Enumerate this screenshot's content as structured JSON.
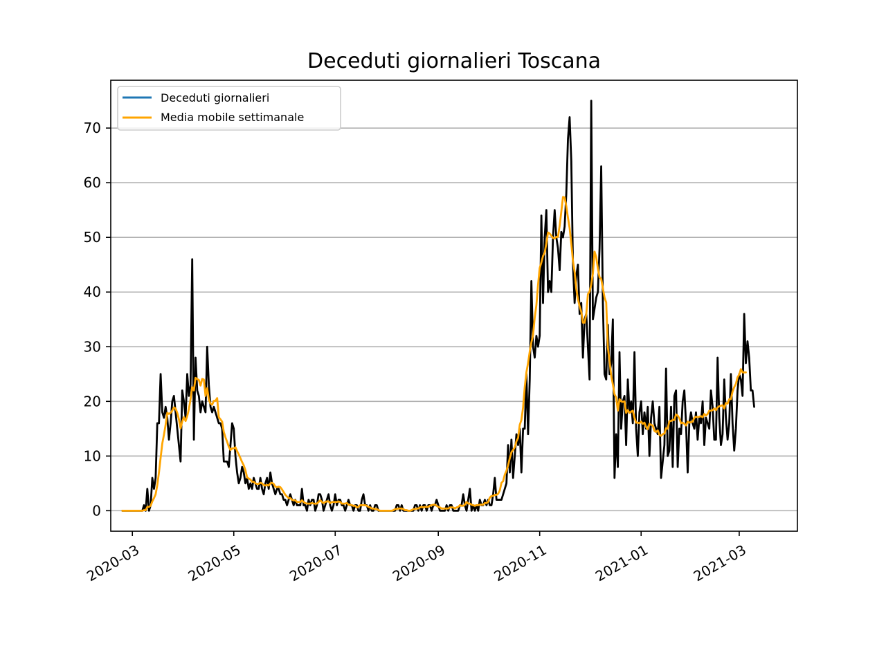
{
  "chart_data": {
    "type": "line",
    "title": "Deceduti giornalieri Toscana",
    "xlabel": "",
    "ylabel": "",
    "x_start": "2020-02-24",
    "x_end": "2021-03-27",
    "xlim": [
      "2020-02-17",
      "2021-04-05"
    ],
    "ylim": [
      -3.75,
      78.75
    ],
    "grid": "y",
    "legend_placement": "upper-left",
    "x_ticks": [
      "2020-03",
      "2020-05",
      "2020-07",
      "2020-09",
      "2020-11",
      "2021-01",
      "2021-03"
    ],
    "x_tick_dates": [
      "2020-03-01",
      "2020-05-01",
      "2020-07-01",
      "2020-09-01",
      "2020-11-01",
      "2021-01-01",
      "2021-03-01"
    ],
    "y_ticks": [
      0,
      10,
      20,
      30,
      40,
      50,
      60,
      70
    ],
    "series": [
      {
        "name": "Deceduti giornalieri",
        "legend_color": "#1f77b4",
        "line_color": "#000000",
        "values": [
          0,
          0,
          0,
          0,
          0,
          0,
          0,
          0,
          0,
          0,
          0,
          0,
          0,
          1,
          0,
          4,
          0,
          1,
          6,
          4,
          6,
          16,
          16,
          25,
          18,
          17,
          19,
          17,
          13,
          16,
          20,
          21,
          18,
          15,
          12,
          9,
          22,
          20,
          17,
          25,
          21,
          23,
          46,
          13,
          28,
          22,
          21,
          18,
          20,
          19,
          18,
          30,
          23,
          19,
          18,
          19,
          18,
          17,
          16,
          16,
          15,
          9,
          9,
          9,
          8,
          12,
          16,
          15,
          10,
          7,
          5,
          6,
          8,
          7,
          5,
          6,
          4,
          5,
          4,
          6,
          5,
          4,
          4,
          6,
          4,
          3,
          5,
          6,
          4,
          7,
          5,
          4,
          3,
          4,
          4,
          3,
          3,
          2,
          2,
          1,
          2,
          3,
          2,
          1,
          2,
          1,
          1,
          1,
          4,
          1,
          1,
          0,
          2,
          1,
          2,
          2,
          0,
          1,
          3,
          3,
          2,
          0,
          1,
          2,
          3,
          1,
          0,
          1,
          3,
          1,
          2,
          2,
          1,
          1,
          0,
          1,
          2,
          1,
          1,
          0,
          1,
          1,
          0,
          0,
          2,
          3,
          1,
          1,
          0,
          1,
          0,
          0,
          1,
          1,
          0,
          0,
          0,
          0,
          0,
          0,
          0,
          0,
          0,
          0,
          0,
          1,
          1,
          0,
          1,
          0,
          0,
          0,
          0,
          0,
          0,
          0,
          1,
          1,
          0,
          1,
          0,
          1,
          1,
          0,
          1,
          1,
          0,
          1,
          1,
          2,
          1,
          0,
          0,
          0,
          0,
          1,
          0,
          1,
          1,
          0,
          0,
          0,
          0,
          1,
          1,
          3,
          1,
          0,
          2,
          4,
          0,
          1,
          0,
          1,
          0,
          2,
          1,
          1,
          2,
          1,
          2,
          1,
          1,
          3,
          6,
          2,
          2,
          2,
          2,
          3,
          4,
          5,
          12,
          7,
          13,
          6,
          10,
          14,
          12,
          15,
          7,
          15,
          15,
          25,
          14,
          24,
          42,
          30,
          28,
          32,
          30,
          32,
          54,
          38,
          50,
          55,
          40,
          42,
          40,
          50,
          55,
          50,
          48,
          44,
          51,
          50,
          52,
          58,
          68,
          72,
          64,
          45,
          38,
          43,
          45,
          36,
          38,
          28,
          35,
          36,
          30,
          24,
          75,
          35,
          37,
          39,
          40,
          48,
          63,
          38,
          25,
          24,
          34,
          25,
          27,
          35,
          6,
          14,
          8,
          29,
          15,
          20,
          21,
          12,
          24,
          18,
          20,
          16,
          29,
          15,
          10,
          18,
          20,
          14,
          18,
          15,
          19,
          10,
          17,
          20,
          16,
          15,
          14,
          19,
          6,
          9,
          12,
          26,
          10,
          11,
          19,
          8,
          21,
          22,
          8,
          15,
          14,
          20,
          22,
          16,
          7,
          16,
          18,
          16,
          15,
          18,
          13,
          17,
          16,
          20,
          12,
          17,
          16,
          15,
          22,
          19,
          13,
          13,
          28,
          17,
          12,
          14,
          24,
          17,
          13,
          16,
          25,
          16,
          11,
          15,
          22,
          25,
          24,
          21,
          36,
          27,
          31,
          28,
          22,
          22,
          19
        ]
      },
      {
        "name": "Media mobile settimanale",
        "line_color": "#ffa500",
        "values": [
          0,
          0,
          0,
          0,
          0,
          0,
          0,
          0,
          0,
          0,
          0,
          0,
          0,
          0.1,
          0.1,
          0.7,
          0.7,
          0.9,
          1.7,
          2.3,
          3,
          4.7,
          7,
          9.7,
          12.3,
          13.9,
          15.7,
          17.9,
          17.7,
          17.9,
          18.3,
          18.9,
          18.7,
          17.9,
          16.7,
          15.1,
          16.3,
          17.1,
          16.4,
          17.3,
          18.6,
          20.4,
          22.6,
          22,
          24.3,
          24.1,
          23.9,
          22.9,
          24.1,
          24,
          21,
          22.4,
          20.3,
          19.6,
          19.4,
          20.1,
          20.1,
          20.6,
          17.1,
          16.7,
          16.3,
          14.4,
          13.4,
          12.6,
          11.7,
          11.1,
          11.4,
          11.4,
          11.6,
          10.9,
          10.3,
          9.6,
          8.9,
          8.3,
          7.4,
          6.1,
          5.9,
          5.7,
          5.3,
          5.3,
          5,
          4.9,
          4.9,
          5.1,
          5,
          4.7,
          4.6,
          4.7,
          4.6,
          5,
          5.1,
          4.9,
          4.4,
          4.3,
          4.4,
          4.3,
          3.9,
          3.4,
          2.9,
          2.6,
          2.3,
          2.3,
          2,
          1.9,
          1.9,
          1.6,
          1.6,
          1.6,
          1.9,
          1.6,
          1.4,
          1.3,
          1.3,
          1.3,
          1.4,
          1.3,
          1.3,
          1.3,
          1.6,
          1.9,
          1.6,
          1.4,
          1.6,
          1.7,
          1.7,
          1.4,
          1.6,
          1.6,
          1.6,
          1.6,
          1.7,
          1.6,
          1.3,
          1.3,
          1.3,
          1.4,
          1.1,
          1.1,
          1,
          0.9,
          0.9,
          0.6,
          0.7,
          1,
          1,
          1,
          1,
          0.9,
          0.7,
          0.6,
          0.4,
          0.4,
          0.3,
          0.3,
          0.1,
          0,
          0,
          0,
          0,
          0,
          0,
          0,
          0,
          0.1,
          0.3,
          0.3,
          0.4,
          0.4,
          0.4,
          0.3,
          0.1,
          0.1,
          0,
          0,
          0.1,
          0.3,
          0.3,
          0.4,
          0.4,
          0.6,
          0.7,
          0.6,
          0.7,
          0.7,
          0.7,
          0.9,
          1,
          1.1,
          1.1,
          0.9,
          0.7,
          0.6,
          0.4,
          0.4,
          0.4,
          0.4,
          0.4,
          0.6,
          0.6,
          0.6,
          0.4,
          0.6,
          0.7,
          1,
          0.9,
          0.9,
          1.1,
          1.6,
          1.3,
          1.3,
          1.1,
          1,
          0.9,
          1,
          1,
          1.1,
          1.1,
          1.1,
          1.4,
          1.4,
          1.6,
          2.4,
          2.7,
          2.7,
          2.9,
          2.9,
          3.1,
          3.7,
          5.1,
          5.4,
          6.6,
          7.3,
          8.3,
          9.6,
          10.7,
          11.1,
          11.6,
          12.7,
          13.3,
          15.7,
          16.6,
          18.9,
          22.6,
          25.3,
          27,
          29.1,
          30.8,
          32.1,
          35.3,
          37.6,
          41.3,
          44.4,
          45.4,
          46.6,
          47.2,
          48.9,
          50.9,
          50.7,
          50.3,
          49.9,
          49.8,
          50.1,
          50.1,
          52.1,
          54.7,
          57.4,
          57.3,
          55.7,
          53.6,
          51.7,
          48.9,
          45.7,
          43.7,
          40.6,
          38.7,
          37.4,
          36.4,
          34.4,
          34.4,
          35.9,
          39.6,
          40.1,
          41.4,
          43.4,
          47.4,
          46.4,
          44.3,
          42.7,
          42.4,
          40.7,
          39,
          38.1,
          29.9,
          27.4,
          24.7,
          23.1,
          21.3,
          20.7,
          18.3,
          20.4,
          20,
          19.9,
          20,
          17.9,
          18.4,
          17.9,
          18.1,
          18.3,
          17,
          16.1,
          16.1,
          16,
          16.3,
          15.9,
          16.1,
          15.3,
          14.9,
          15.9,
          15.7,
          15.6,
          14.6,
          14.4,
          14.7,
          13.9,
          13.7,
          14,
          14.1,
          15.1,
          15,
          16.4,
          16.4,
          16.6,
          16.6,
          17.6,
          17.4,
          16.9,
          16,
          16.1,
          15.9,
          15.6,
          16.3,
          16.1,
          16.2,
          16.3,
          17,
          17.2,
          17.1,
          17.2,
          17.3,
          17.1,
          17.7,
          17.4,
          17.7,
          18.3,
          18.3,
          18.4,
          18.7,
          18.4,
          18.9,
          19.1,
          19.2,
          19.3,
          18.7,
          19.7,
          19.6,
          20.4,
          20.4,
          21.8,
          22.6,
          23.2,
          24.4,
          24.9,
          25.9,
          25.3,
          25.3,
          25.3
        ]
      }
    ]
  }
}
